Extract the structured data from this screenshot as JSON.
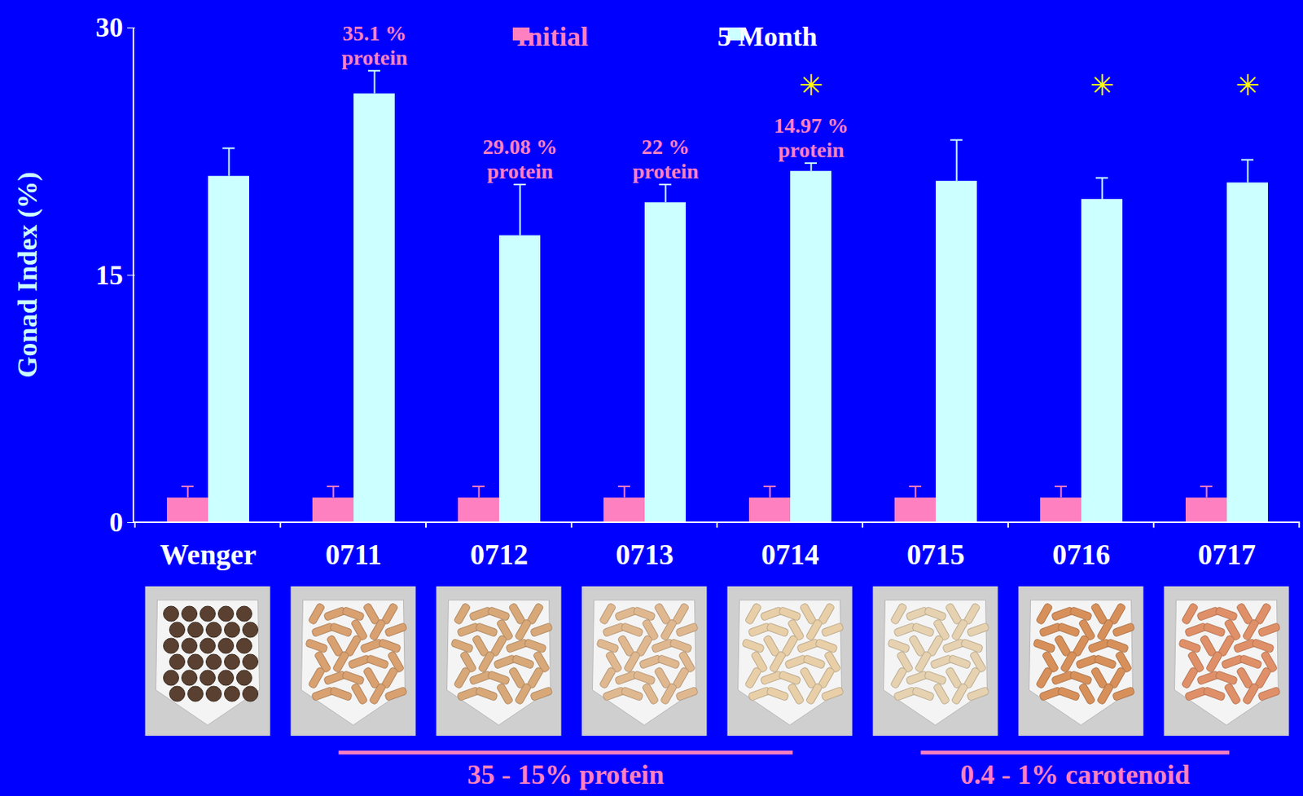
{
  "chart_data": {
    "type": "bar",
    "y_label": "Gonad Index (%)",
    "categories": [
      "Wenger",
      "0711",
      "0712",
      "0713",
      "0714",
      "0715",
      "0716",
      "0717"
    ],
    "series": [
      {
        "name": "Initial",
        "color": "#ff80c0",
        "values": [
          1.5,
          1.5,
          1.5,
          1.5,
          1.5,
          1.5,
          1.5,
          1.5
        ],
        "errors": [
          0.7,
          0.7,
          0.7,
          0.7,
          0.7,
          0.7,
          0.7,
          0.7
        ]
      },
      {
        "name": "5 Month",
        "color": "#ccffff",
        "values": [
          21.0,
          26.0,
          17.4,
          19.4,
          21.3,
          20.7,
          19.6,
          20.6
        ],
        "errors": [
          1.7,
          1.4,
          3.1,
          1.1,
          0.5,
          2.5,
          1.3,
          1.4
        ]
      }
    ],
    "ylim": [
      0,
      30
    ],
    "yticks": [
      0,
      15,
      30
    ],
    "legend": "top",
    "annotations": [
      {
        "category": "0711",
        "series": "5 Month",
        "text": "35.1 %\nprotein"
      },
      {
        "category": "0712",
        "series": "5 Month",
        "text": "29.08 %\nprotein"
      },
      {
        "category": "0713",
        "series": "5 Month",
        "text": "22 %\nprotein"
      },
      {
        "category": "0714",
        "series": "5 Month",
        "text": "14.97 %\nprotein"
      }
    ],
    "significance": {
      "symbol": "✳",
      "categories": [
        "0714",
        "0716",
        "0717"
      ]
    },
    "groups": [
      {
        "label": "35 - 15% protein",
        "from": "0711",
        "to": "0714"
      },
      {
        "label": "0.4 - 1% carotenoid",
        "from": "0715",
        "to": "0717"
      }
    ]
  }
}
